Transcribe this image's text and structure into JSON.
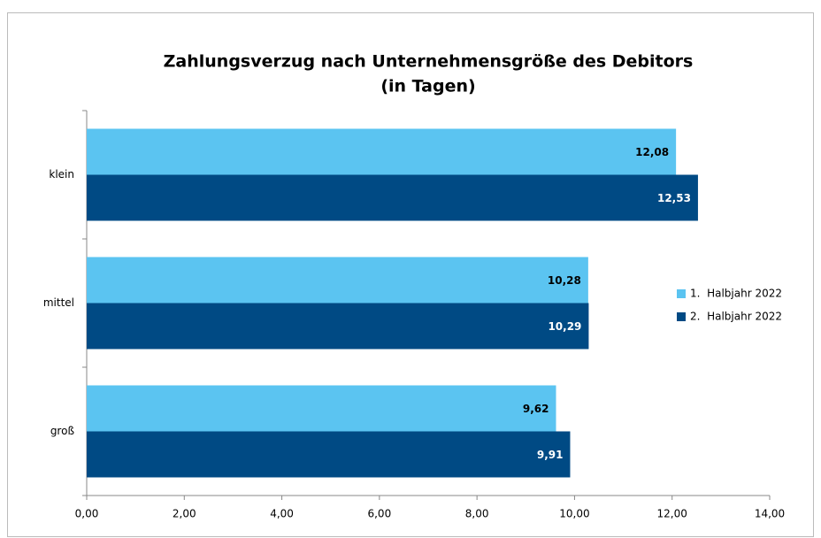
{
  "chart_data": {
    "type": "hbar",
    "title": [
      "Zahlungsverzug nach Unternehmensgröße des Debitors",
      "(in Tagen)"
    ],
    "categories": [
      "klein",
      "mittel",
      "groß"
    ],
    "series": [
      {
        "name": "1.  Halbjahr 2022",
        "color": "#5bc4f1",
        "values": [
          12.08,
          10.28,
          9.62
        ],
        "value_labels": [
          "12,08",
          "10,28",
          "9,62"
        ]
      },
      {
        "name": "2.  Halbjahr 2022",
        "color": "#004a84",
        "values": [
          12.53,
          10.29,
          9.91
        ],
        "value_labels": [
          "12,53",
          "10,29",
          "9,91"
        ]
      }
    ],
    "xlim": [
      0,
      14
    ],
    "xticks": [
      {
        "value": 0,
        "label": "0,00"
      },
      {
        "value": 2,
        "label": "2,00"
      },
      {
        "value": 4,
        "label": "4,00"
      },
      {
        "value": 6,
        "label": "6,00"
      },
      {
        "value": 8,
        "label": "8,00"
      },
      {
        "value": 10,
        "label": "10,00"
      },
      {
        "value": 12,
        "label": "12,00"
      },
      {
        "value": 14,
        "label": "14,00"
      }
    ],
    "legend": "right"
  }
}
